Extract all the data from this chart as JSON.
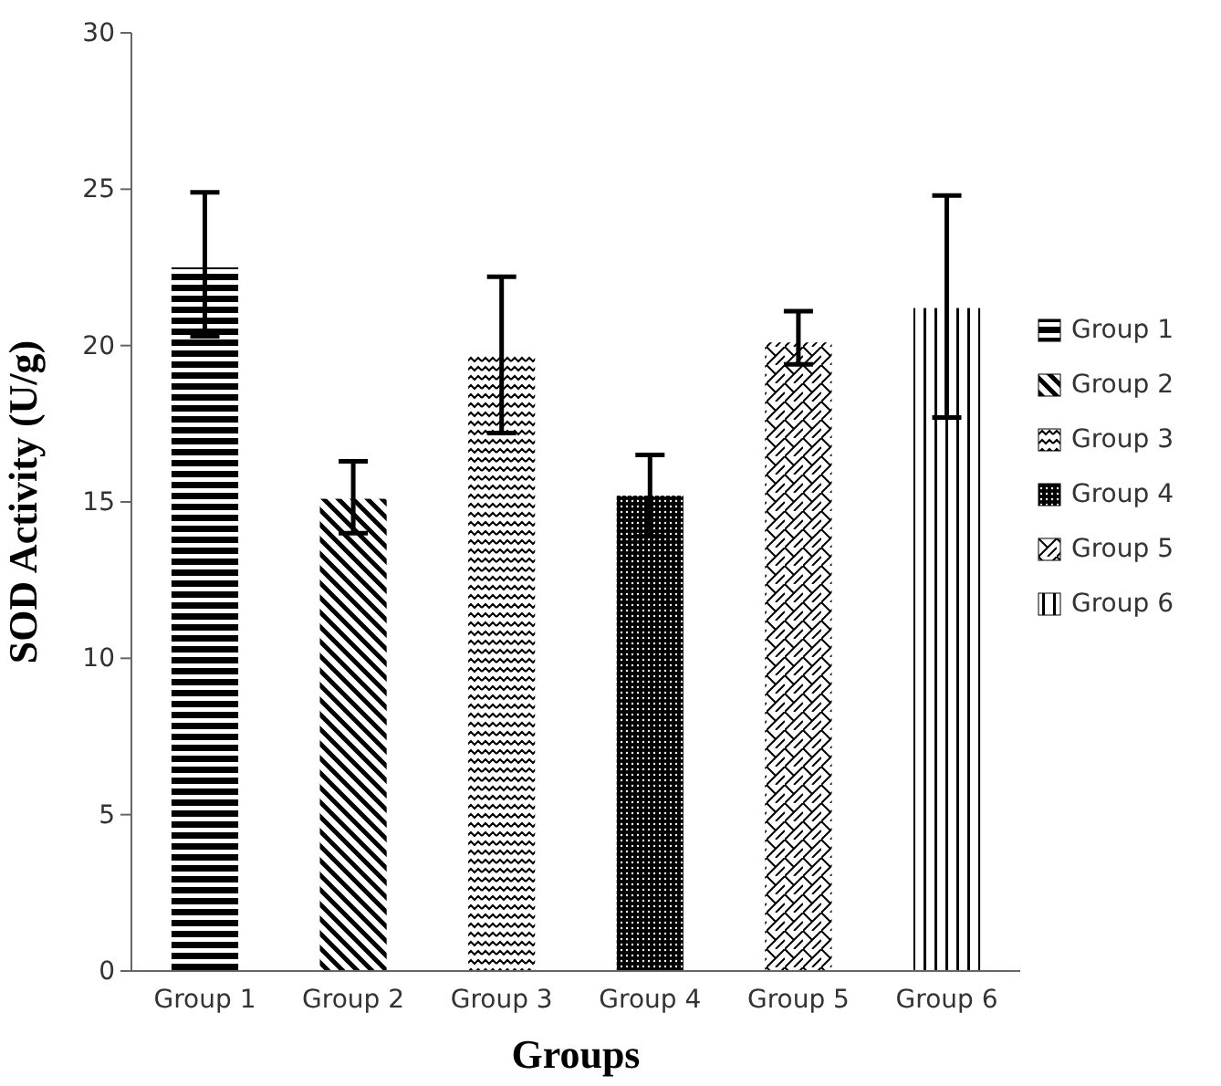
{
  "chart_data": {
    "type": "bar",
    "xlabel": "Groups",
    "ylabel": "SOD Activity (U/g)",
    "categories": [
      "Group 1",
      "Group 2",
      "Group 3",
      "Group 4",
      "Group 5",
      "Group 6"
    ],
    "series": [
      {
        "name": "Group 1",
        "color": "#000000",
        "values": [
          22.5,
          null,
          null,
          null,
          null,
          null
        ],
        "errors": [
          [
            20.3,
            24.9
          ],
          null,
          null,
          null,
          null,
          null
        ]
      },
      {
        "name": "Group 2",
        "color": "#000000",
        "values": [
          null,
          15.1,
          null,
          null,
          null,
          null
        ],
        "errors": [
          null,
          [
            14.0,
            16.3
          ],
          null,
          null,
          null,
          null
        ]
      },
      {
        "name": "Group 3",
        "color": "#000000",
        "values": [
          null,
          null,
          19.7,
          null,
          null,
          null
        ],
        "errors": [
          null,
          null,
          [
            17.2,
            22.2
          ],
          null,
          null,
          null
        ]
      },
      {
        "name": "Group 4",
        "color": "#000000",
        "values": [
          null,
          null,
          null,
          15.2,
          null,
          null
        ],
        "errors": [
          null,
          null,
          null,
          [
            13.9,
            16.5
          ],
          null,
          null
        ]
      },
      {
        "name": "Group 5",
        "color": "#000000",
        "values": [
          null,
          null,
          null,
          null,
          20.1,
          null
        ],
        "errors": [
          null,
          null,
          null,
          null,
          [
            19.4,
            21.1
          ],
          null
        ]
      },
      {
        "name": "Group 6",
        "color": "#000000",
        "values": [
          null,
          null,
          null,
          null,
          null,
          21.2
        ],
        "errors": [
          null,
          null,
          null,
          null,
          null,
          [
            17.7,
            24.8
          ]
        ]
      }
    ],
    "ylim": [
      0,
      30
    ],
    "yticks": [
      0,
      5,
      10,
      15,
      20,
      25,
      30
    ],
    "grid": false,
    "legend": "right"
  }
}
